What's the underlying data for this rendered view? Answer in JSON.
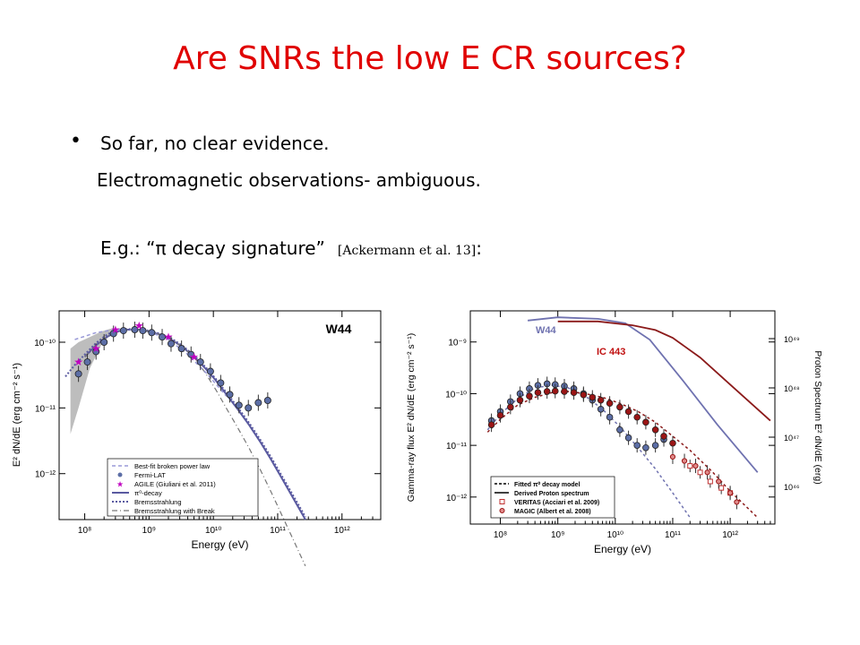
{
  "slide": {
    "title": "Are SNRs the low E CR sources?",
    "bullet": "•",
    "bullet_text": "So far, no clear evidence.",
    "line2": "Electromagnetic observations- ambiguous.",
    "eg_prefix": "E.g.: “π decay signature”",
    "eg_cite": "[Ackermann et al. 13]",
    "eg_suffix": ":"
  },
  "chart_data": [
    {
      "type": "scatter",
      "title": "W44",
      "xlabel": "Energy (eV)",
      "ylabel": "E² dN/dE (erg cm⁻² s⁻¹)",
      "xscale": "log",
      "yscale": "log",
      "xlim": [
        40000000.0,
        4000000000000.0
      ],
      "ylim": [
        2e-13,
        3e-10
      ],
      "x_ticks": [
        "10⁸",
        "10⁹",
        "10¹⁰",
        "10¹¹",
        "10¹²"
      ],
      "y_ticks": [
        "10⁻¹⁰",
        "10⁻¹¹",
        "10⁻¹²"
      ],
      "legend_position": "bottom-left",
      "legend": [
        "Best-fit broken power law",
        "Fermi-LAT",
        "AGILE (Giuliani et al. 2011)",
        "π⁰-decay",
        "Bremsstrahlung",
        "Bremsstrahlung with Break"
      ],
      "series": [
        {
          "name": "Fermi-LAT",
          "x": [
            80000000.0,
            110000000.0,
            150000000.0,
            200000000.0,
            280000000.0,
            400000000.0,
            600000000.0,
            800000000.0,
            1100000000.0,
            1600000000.0,
            2200000000.0,
            3200000000.0,
            4500000000.0,
            6300000000.0,
            9000000000.0,
            13000000000.0,
            18000000000.0,
            25000000000.0,
            35000000000.0,
            50000000000.0,
            70000000000.0
          ],
          "y": [
            3.3e-11,
            5e-11,
            7.2e-11,
            1e-10,
            1.35e-10,
            1.5e-10,
            1.55e-10,
            1.5e-10,
            1.4e-10,
            1.2e-10,
            9.5e-11,
            8e-11,
            6.5e-11,
            5e-11,
            3.6e-11,
            2.4e-11,
            1.6e-11,
            1.1e-11,
            1e-11,
            1.2e-11,
            1.3e-11
          ]
        },
        {
          "name": "AGILE (Giuliani et al. 2011)",
          "x": [
            80000000.0,
            150000000.0,
            300000000.0,
            700000000.0,
            2000000000.0,
            5000000000.0
          ],
          "y": [
            5e-11,
            8e-11,
            1.55e-10,
            1.8e-10,
            1.2e-10,
            6e-11
          ]
        }
      ]
    },
    {
      "type": "scatter",
      "title": "",
      "xlabel": "Energy (eV)",
      "ylabel": "Gamma-ray flux E² dN/dE (erg cm⁻² s⁻¹)",
      "y2label": "Proton Spectrum E² dN/dE (erg)",
      "xscale": "log",
      "yscale": "log",
      "xlim": [
        30000000.0,
        6000000000000.0
      ],
      "ylim": [
        3e-13,
        4e-09
      ],
      "x_ticks": [
        "10⁸",
        "10⁹",
        "10¹⁰",
        "10¹¹",
        "10¹²"
      ],
      "y_ticks": [
        "10⁻⁹",
        "10⁻¹⁰",
        "10⁻¹¹",
        "10⁻¹²"
      ],
      "y2_ticks": [
        "10⁴⁹",
        "10⁴⁸",
        "10⁴⁷",
        "10⁴⁶"
      ],
      "legend_position": "bottom-left",
      "annotations": [
        "W44",
        "IC 443"
      ],
      "legend": [
        "Fitted π⁰ decay model",
        "Derived Proton spectrum",
        "VERITAS (Acciari et al. 2009)",
        "MAGIC (Albert et al. 2008)"
      ],
      "series": [
        {
          "name": "W44",
          "x": [
            70000000.0,
            100000000.0,
            150000000.0,
            220000000.0,
            320000000.0,
            450000000.0,
            650000000.0,
            900000000.0,
            1300000000.0,
            1900000000.0,
            2800000000.0,
            4000000000.0,
            5600000000.0,
            8000000000.0,
            12000000000.0,
            17000000000.0,
            24000000000.0,
            34000000000.0,
            50000000000.0,
            70000000000.0
          ],
          "y": [
            3e-11,
            4.5e-11,
            7e-11,
            1e-10,
            1.25e-10,
            1.45e-10,
            1.55e-10,
            1.5e-10,
            1.4e-10,
            1.25e-10,
            1e-10,
            7.5e-11,
            5e-11,
            3.5e-11,
            2e-11,
            1.4e-11,
            1e-11,
            9e-12,
            1e-11,
            1.3e-11
          ]
        },
        {
          "name": "IC 443",
          "x": [
            70000000.0,
            100000000.0,
            150000000.0,
            220000000.0,
            320000000.0,
            450000000.0,
            650000000.0,
            900000000.0,
            1300000000.0,
            1900000000.0,
            2800000000.0,
            4000000000.0,
            5600000000.0,
            8000000000.0,
            12000000000.0,
            17000000000.0,
            24000000000.0,
            34000000000.0,
            50000000000.0,
            70000000000.0,
            100000000000.0
          ],
          "y": [
            2.5e-11,
            3.8e-11,
            5.5e-11,
            7.5e-11,
            9e-11,
            1.05e-10,
            1.1e-10,
            1.12e-10,
            1.1e-10,
            1.05e-10,
            9.5e-11,
            8.5e-11,
            7.5e-11,
            6.5e-11,
            5.5e-11,
            4.5e-11,
            3.5e-11,
            2.8e-11,
            2e-11,
            1.5e-11,
            1.1e-11
          ]
        },
        {
          "name": "VERITAS (Acciari et al. 2009)",
          "x": [
            200000000000.0,
            300000000000.0,
            450000000000.0,
            700000000000.0,
            1000000000000.0
          ],
          "y": [
            4e-12,
            3e-12,
            2e-12,
            1.5e-12,
            1.2e-12
          ]
        },
        {
          "name": "MAGIC (Albert et al. 2008)",
          "x": [
            100000000000.0,
            160000000000.0,
            250000000000.0,
            400000000000.0,
            630000000000.0,
            1000000000000.0,
            1300000000000.0
          ],
          "y": [
            6e-12,
            5e-12,
            4e-12,
            3e-12,
            2e-12,
            1.2e-12,
            8e-13
          ]
        }
      ]
    }
  ]
}
